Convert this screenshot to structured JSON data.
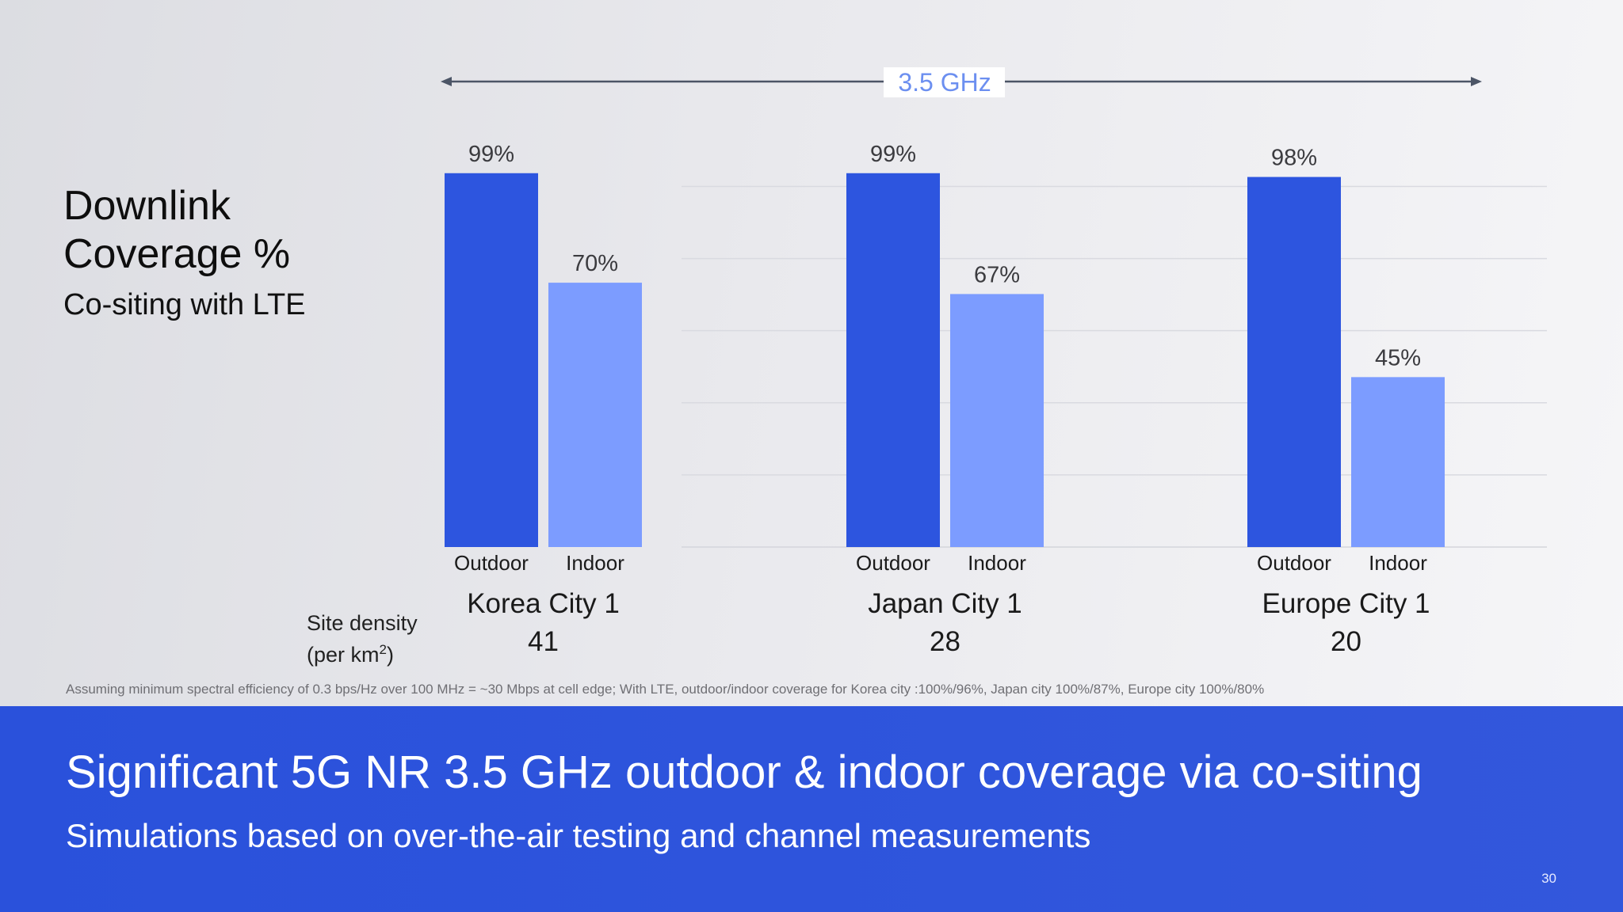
{
  "heading": {
    "title_line1": "Downlink",
    "title_line2": "Coverage %",
    "subtitle": "Co-siting with LTE"
  },
  "site_density": {
    "label_line1": "Site density",
    "label_line2_prefix": "(per km",
    "label_line2_sup": "2",
    "label_line2_suffix": ")"
  },
  "footnote": "Assuming minimum spectral efficiency of 0.3 bps/Hz over 100 MHz = ~30 Mbps at cell edge; With LTE, outdoor/indoor coverage for Korea city :100%/96%, Japan city 100%/87%, Europe city 100%/80%",
  "banner": {
    "title": "Significant 5G NR 3.5 GHz outdoor & indoor coverage via co-siting",
    "subtitle": "Simulations based on over-the-air testing and channel measurements",
    "page_number": "30"
  },
  "colors": {
    "outdoor": "#2d55df",
    "indoor": "#7c9cff",
    "band_label": "#6c8ff0",
    "arrow": "#4c5566"
  },
  "chart_data": {
    "type": "bar",
    "band_label": "3.5 GHz",
    "categories": [
      "Korea City 1",
      "Japan City 1",
      "Europe City 1"
    ],
    "site_density": [
      "41",
      "28",
      "20"
    ],
    "series": [
      {
        "name": "Outdoor",
        "values": [
          99,
          99,
          98
        ]
      },
      {
        "name": "Indoor",
        "values": [
          70,
          67,
          45
        ]
      }
    ],
    "value_suffix": "%",
    "ylim": [
      0,
      100
    ],
    "grid": true,
    "legend": "none"
  }
}
